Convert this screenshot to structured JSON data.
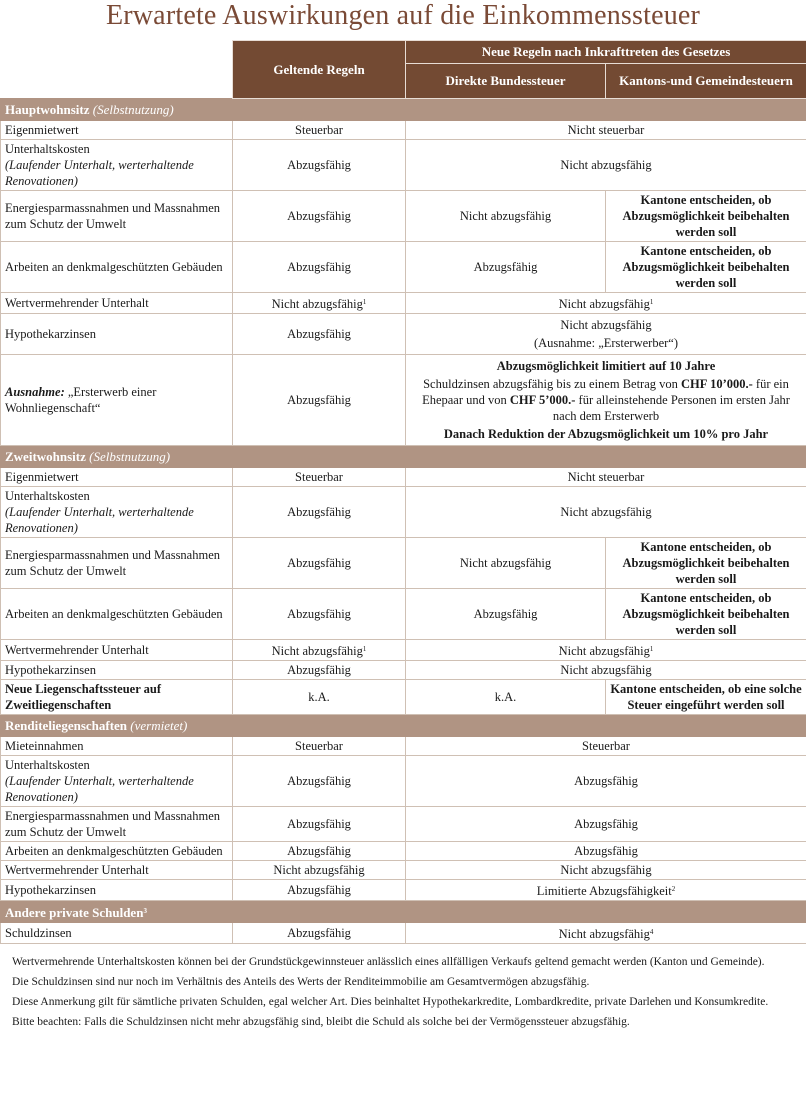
{
  "title": "Erwartete Auswirkungen auf die Einkommenssteuer",
  "header": {
    "current": "Geltende Regeln",
    "new": "Neue Regeln nach Inkrafttreten des Gesetzes",
    "federal": "Direkte Bundessteuer",
    "cantonal": "Kantons-und Gemeindesteuern"
  },
  "colors": {
    "header": "#734a33",
    "section": "#b09483",
    "title": "#7a4a36"
  },
  "sections": [
    {
      "title": "Hauptwohnsitz",
      "subtitle": "(Selbstnutzung)",
      "rows": [
        {
          "label": [
            {
              "t": "Eigenmietwert"
            }
          ],
          "cells": [
            {
              "p": [
                [
                  {
                    "t": "Steuerbar"
                  }
                ]
              ]
            },
            {
              "span": 2,
              "p": [
                [
                  {
                    "t": "Nicht steuerbar"
                  }
                ]
              ]
            }
          ]
        },
        {
          "label": [
            {
              "t": "Unterhaltskosten"
            }
          ],
          "note": "(Laufender Unterhalt, werterhaltende Renovationen)",
          "cells": [
            {
              "p": [
                [
                  {
                    "t": "Abzugsfähig"
                  }
                ]
              ]
            },
            {
              "span": 2,
              "p": [
                [
                  {
                    "t": "Nicht abzugsfähig"
                  }
                ]
              ]
            }
          ]
        },
        {
          "label": [
            {
              "t": "Energiesparmassnahmen und Massnahmen zum Schutz der Umwelt"
            }
          ],
          "cells": [
            {
              "p": [
                [
                  {
                    "t": "Abzugsfähig"
                  }
                ]
              ]
            },
            {
              "p": [
                [
                  {
                    "t": "Nicht abzugsfähig"
                  }
                ]
              ]
            },
            {
              "p": [
                [
                  {
                    "t": "Kantone entscheiden, ob Abzugsmöglichkeit beibehalten werden soll",
                    "b": true
                  }
                ]
              ]
            }
          ]
        },
        {
          "label": [
            {
              "t": "Arbeiten an denkmalgeschützten Gebäuden"
            }
          ],
          "cells": [
            {
              "p": [
                [
                  {
                    "t": "Abzugsfähig"
                  }
                ]
              ]
            },
            {
              "p": [
                [
                  {
                    "t": "Abzugsfähig"
                  }
                ]
              ]
            },
            {
              "p": [
                [
                  {
                    "t": "Kantone entscheiden, ob Abzugsmöglichkeit beibehalten werden soll",
                    "b": true
                  }
                ]
              ]
            }
          ]
        },
        {
          "label": [
            {
              "t": "Wertvermehrender Unterhalt"
            }
          ],
          "cells": [
            {
              "p": [
                [
                  {
                    "t": "Nicht abzugsfähig"
                  },
                  {
                    "t": "1",
                    "sup": true
                  }
                ]
              ]
            },
            {
              "span": 2,
              "p": [
                [
                  {
                    "t": "Nicht abzugsfähig"
                  },
                  {
                    "t": "1",
                    "sup": true
                  }
                ]
              ]
            }
          ]
        },
        {
          "label": [
            {
              "t": "Hypothekarzinsen"
            }
          ],
          "cells": [
            {
              "p": [
                [
                  {
                    "t": "Abzugsfähig"
                  }
                ]
              ]
            },
            {
              "span": 2,
              "p": [
                [
                  {
                    "t": "Nicht abzugsfähig"
                  }
                ],
                [
                  {
                    "t": "(Ausnahme: „Ersterwerber“)"
                  }
                ]
              ]
            }
          ]
        },
        {
          "label": [
            {
              "t": "Ausnahme:",
              "b": true,
              "i": true
            },
            {
              "t": " „Ersterwerb einer Wohnliegenschaft“"
            }
          ],
          "cells": [
            {
              "p": [
                [
                  {
                    "t": "Abzugsfähig"
                  }
                ]
              ]
            },
            {
              "span": 2,
              "p": [
                [
                  {
                    "t": "Abzugsmöglichkeit limitiert auf 10 Jahre",
                    "b": true
                  }
                ],
                [
                  {
                    "t": "Schuldzinsen abzugsfähig bis zu einem Betrag von "
                  },
                  {
                    "t": "CHF 10’000.-",
                    "b": true
                  },
                  {
                    "t": " für ein Ehepaar und von "
                  },
                  {
                    "t": "CHF 5’000.-",
                    "b": true
                  },
                  {
                    "t": " für alleinstehende Personen im ersten Jahr nach dem Ersterwerb"
                  }
                ],
                [
                  {
                    "t": "Danach Reduktion der Abzugsmöglichkeit um 10% pro Jahr",
                    "b": true
                  }
                ]
              ]
            }
          ]
        }
      ]
    },
    {
      "title": "Zweitwohnsitz",
      "subtitle": "(Selbstnutzung)",
      "rows": [
        {
          "label": [
            {
              "t": "Eigenmietwert"
            }
          ],
          "cells": [
            {
              "p": [
                [
                  {
                    "t": "Steuerbar"
                  }
                ]
              ]
            },
            {
              "span": 2,
              "p": [
                [
                  {
                    "t": "Nicht steuerbar"
                  }
                ]
              ]
            }
          ]
        },
        {
          "label": [
            {
              "t": "Unterhaltskosten"
            }
          ],
          "note": "(Laufender Unterhalt, werterhaltende Renovationen)",
          "cells": [
            {
              "p": [
                [
                  {
                    "t": "Abzugsfähig"
                  }
                ]
              ]
            },
            {
              "span": 2,
              "p": [
                [
                  {
                    "t": "Nicht abzugsfähig"
                  }
                ]
              ]
            }
          ]
        },
        {
          "label": [
            {
              "t": "Energiesparmassnahmen und Massnahmen zum Schutz der Umwelt"
            }
          ],
          "cells": [
            {
              "p": [
                [
                  {
                    "t": "Abzugsfähig"
                  }
                ]
              ]
            },
            {
              "p": [
                [
                  {
                    "t": "Nicht abzugsfähig"
                  }
                ]
              ]
            },
            {
              "p": [
                [
                  {
                    "t": "Kantone entscheiden, ob Abzugsmöglichkeit beibehalten werden soll",
                    "b": true
                  }
                ]
              ]
            }
          ]
        },
        {
          "label": [
            {
              "t": "Arbeiten an denkmalgeschützten Gebäuden"
            }
          ],
          "cells": [
            {
              "p": [
                [
                  {
                    "t": "Abzugsfähig"
                  }
                ]
              ]
            },
            {
              "p": [
                [
                  {
                    "t": "Abzugsfähig"
                  }
                ]
              ]
            },
            {
              "p": [
                [
                  {
                    "t": "Kantone entscheiden, ob Abzugsmöglichkeit beibehalten werden soll",
                    "b": true
                  }
                ]
              ]
            }
          ]
        },
        {
          "label": [
            {
              "t": "Wertvermehrender Unterhalt"
            }
          ],
          "cells": [
            {
              "p": [
                [
                  {
                    "t": "Nicht abzugsfähig"
                  },
                  {
                    "t": "1",
                    "sup": true
                  }
                ]
              ]
            },
            {
              "span": 2,
              "p": [
                [
                  {
                    "t": "Nicht abzugsfähig"
                  },
                  {
                    "t": "1",
                    "sup": true
                  }
                ]
              ]
            }
          ]
        },
        {
          "label": [
            {
              "t": "Hypothekarzinsen"
            }
          ],
          "cells": [
            {
              "p": [
                [
                  {
                    "t": "Abzugsfähig"
                  }
                ]
              ]
            },
            {
              "span": 2,
              "p": [
                [
                  {
                    "t": "Nicht abzugsfähig"
                  }
                ]
              ]
            }
          ]
        },
        {
          "label": [
            {
              "t": "Neue Liegenschaftssteuer auf Zweitliegenschaften",
              "b": true
            }
          ],
          "cells": [
            {
              "p": [
                [
                  {
                    "t": "k.A."
                  }
                ]
              ]
            },
            {
              "p": [
                [
                  {
                    "t": "k.A."
                  }
                ]
              ]
            },
            {
              "p": [
                [
                  {
                    "t": "Kantone entscheiden, ob eine solche Steuer eingeführt werden soll",
                    "b": true
                  }
                ]
              ]
            }
          ]
        }
      ]
    },
    {
      "title": "Renditeliegenschaften",
      "subtitle": "(vermietet)",
      "rows": [
        {
          "label": [
            {
              "t": "Mieteinnahmen"
            }
          ],
          "cells": [
            {
              "p": [
                [
                  {
                    "t": "Steuerbar"
                  }
                ]
              ]
            },
            {
              "span": 2,
              "p": [
                [
                  {
                    "t": "Steuerbar"
                  }
                ]
              ]
            }
          ]
        },
        {
          "label": [
            {
              "t": "Unterhaltskosten"
            }
          ],
          "note": "(Laufender Unterhalt, werterhaltende Renovationen)",
          "cells": [
            {
              "p": [
                [
                  {
                    "t": "Abzugsfähig"
                  }
                ]
              ]
            },
            {
              "span": 2,
              "p": [
                [
                  {
                    "t": "Abzugsfähig"
                  }
                ]
              ]
            }
          ]
        },
        {
          "label": [
            {
              "t": "Energiesparmassnahmen und Massnahmen zum Schutz der Umwelt"
            }
          ],
          "cells": [
            {
              "p": [
                [
                  {
                    "t": "Abzugsfähig"
                  }
                ]
              ]
            },
            {
              "span": 2,
              "p": [
                [
                  {
                    "t": "Abzugsfähig"
                  }
                ]
              ]
            }
          ]
        },
        {
          "label": [
            {
              "t": "Arbeiten an denkmalgeschützten Gebäuden"
            }
          ],
          "cells": [
            {
              "p": [
                [
                  {
                    "t": "Abzugsfähig"
                  }
                ]
              ]
            },
            {
              "span": 2,
              "p": [
                [
                  {
                    "t": "Abzugsfähig"
                  }
                ]
              ]
            }
          ]
        },
        {
          "label": [
            {
              "t": "Wertvermehrender Unterhalt"
            }
          ],
          "cells": [
            {
              "p": [
                [
                  {
                    "t": "Nicht abzugsfähig"
                  }
                ]
              ]
            },
            {
              "span": 2,
              "p": [
                [
                  {
                    "t": "Nicht abzugsfähig"
                  }
                ]
              ]
            }
          ]
        },
        {
          "label": [
            {
              "t": "Hypothekarzinsen"
            }
          ],
          "cells": [
            {
              "p": [
                [
                  {
                    "t": "Abzugsfähig"
                  }
                ]
              ]
            },
            {
              "span": 2,
              "p": [
                [
                  {
                    "t": "Limitierte Abzugsfähigkeit"
                  },
                  {
                    "t": "2",
                    "sup": true
                  }
                ]
              ]
            }
          ]
        }
      ]
    },
    {
      "title": "Andere private Schulden",
      "sup": "3",
      "subtitle": "",
      "rows": [
        {
          "label": [
            {
              "t": "Schuldzinsen"
            }
          ],
          "cells": [
            {
              "p": [
                [
                  {
                    "t": "Abzugsfähig"
                  }
                ]
              ]
            },
            {
              "span": 2,
              "p": [
                [
                  {
                    "t": "Nicht abzugsfähig"
                  },
                  {
                    "t": "4",
                    "sup": true
                  }
                ]
              ]
            }
          ]
        }
      ]
    }
  ],
  "notes": [
    "Wertvermehrende Unterhaltskosten können bei der Grundstückgewinnsteuer anlässlich eines allfälligen Verkaufs geltend gemacht werden (Kanton und Gemeinde).",
    "Die Schuldzinsen sind nur noch im Verhältnis des Anteils des Werts der Renditeimmobilie am Gesamtvermögen abzugsfähig.",
    "Diese Anmerkung gilt für sämtliche privaten Schulden, egal welcher Art. Dies beinhaltet Hypothekarkredite, Lombardkredite, private Darlehen und Konsumkredite.",
    "Bitte beachten: Falls die Schuldzinsen nicht mehr abzugsfähig sind, bleibt die Schuld als solche bei der Vermögenssteuer abzugsfähig."
  ]
}
